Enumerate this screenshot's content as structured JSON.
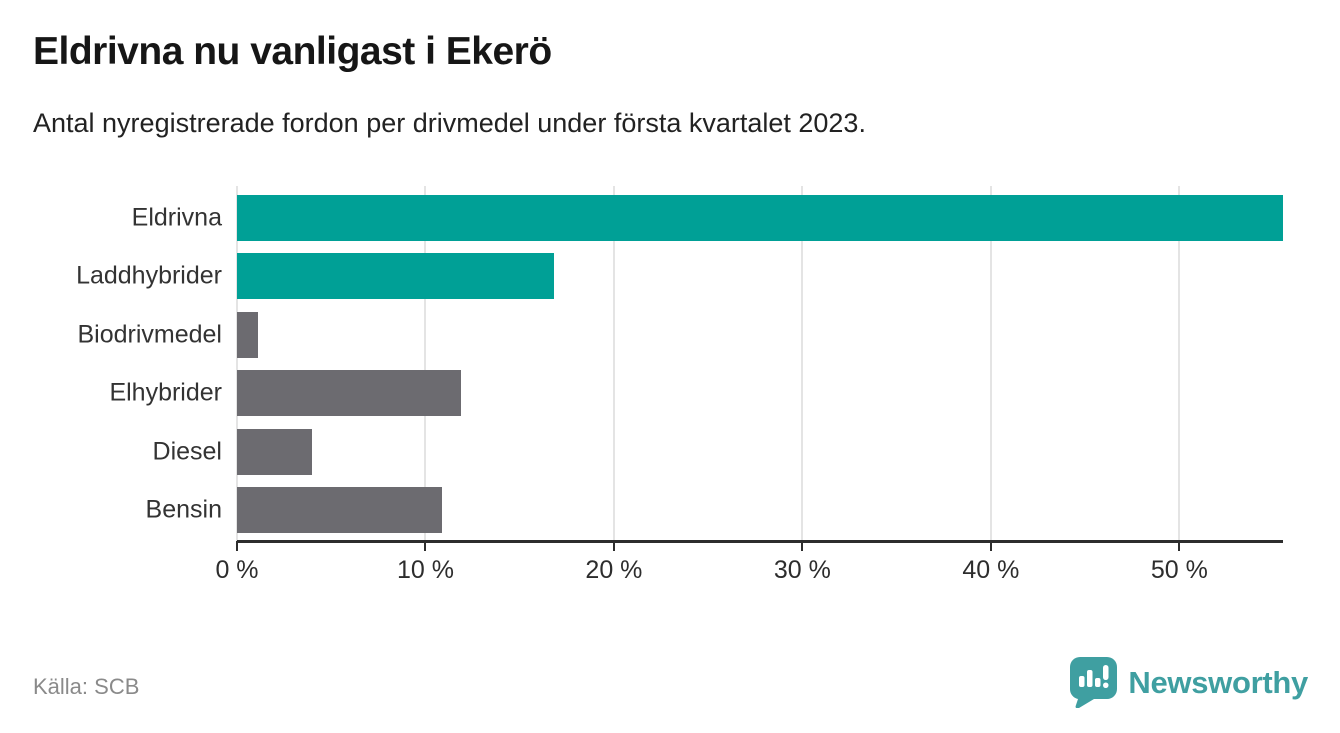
{
  "header": {
    "title": "Eldrivna nu vanligast i Ekerö",
    "subtitle": "Antal nyregistrerade fordon per drivmedel under första kvartalet 2023."
  },
  "footer": {
    "source": "Källa: SCB",
    "brand": "Newsworthy",
    "brand_icon": "newsworthy-chart-bubble-icon"
  },
  "colors": {
    "highlight_bar": "#00a096",
    "default_bar": "#6c6b70",
    "gridline": "#e4e4e4",
    "axis": "#2d2d2d",
    "brand_teal": "#3f9fa1"
  },
  "chart_data": {
    "type": "bar",
    "orientation": "horizontal",
    "title": "Eldrivna nu vanligast i Ekerö",
    "subtitle": "Antal nyregistrerade fordon per drivmedel under första kvartalet 2023.",
    "categories": [
      "Eldrivna",
      "Laddhybrider",
      "Biodrivmedel",
      "Elhybrider",
      "Diesel",
      "Bensin"
    ],
    "values": [
      55.5,
      16.8,
      1.1,
      11.9,
      4.0,
      10.9
    ],
    "unit": "%",
    "bar_colors": [
      "#00a096",
      "#00a096",
      "#6c6b70",
      "#6c6b70",
      "#6c6b70",
      "#6c6b70"
    ],
    "x_ticks": [
      0,
      10,
      20,
      30,
      40,
      50
    ],
    "x_tick_labels": [
      "0 %",
      "10 %",
      "20 %",
      "30 %",
      "40 %",
      "50 %"
    ],
    "xlim": [
      0,
      55.5
    ],
    "grid": "vertical-gridlines",
    "legend": "none",
    "source": "Källa: SCB"
  }
}
